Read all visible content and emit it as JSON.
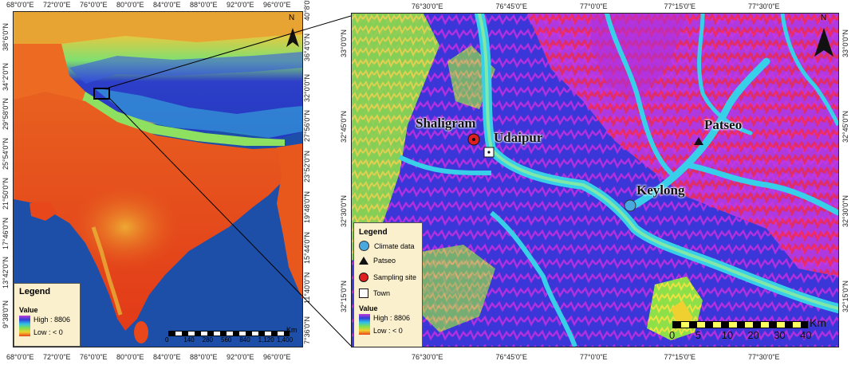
{
  "left_map": {
    "top_ticks": [
      "68°0'0\"E",
      "72°0'0\"E",
      "76°0'0\"E",
      "80°0'0\"E",
      "84°0'0\"E",
      "88°0'0\"E",
      "92°0'0\"E",
      "96°0'0\"E"
    ],
    "bottom_ticks": [
      "68°0'0\"E",
      "72°0'0\"E",
      "76°0'0\"E",
      "80°0'0\"E",
      "84°0'0\"E",
      "88°0'0\"E",
      "92°0'0\"E",
      "96°0'0\"E"
    ],
    "left_ticks": [
      "38°6'0\"N",
      "34°2'0\"N",
      "29°58'0\"N",
      "25°54'0\"N",
      "21°50'0\"N",
      "17°46'0\"N",
      "13°42'0\"N",
      "9°38'0\"N"
    ],
    "right_ticks": [
      "40°8'0\"N",
      "36°4'0\"N",
      "32°0'0\"N",
      "27°56'0\"N",
      "23°52'0\"N",
      "19°48'0\"N",
      "15°44'0\"N",
      "11°40'0\"N",
      "7°36'0\"N"
    ],
    "north": "N",
    "legend": {
      "title": "Legend",
      "value_label": "Value",
      "high": "High : 8806",
      "low": "Low : < 0"
    },
    "scalebar": {
      "labels": [
        "0",
        "140",
        "280",
        "560",
        "840",
        "1,120",
        "1,400"
      ],
      "unit": "Km"
    }
  },
  "right_map": {
    "top_ticks": [
      "76°30'0\"E",
      "76°45'0\"E",
      "77°0'0\"E",
      "77°15'0\"E",
      "77°30'0\"E"
    ],
    "bottom_ticks": [
      "76°30'0\"E",
      "76°45'0\"E",
      "77°0'0\"E",
      "77°15'0\"E",
      "77°30'0\"E"
    ],
    "left_ticks": [
      "33°0'0\"N",
      "32°45'0\"N",
      "32°30'0\"N",
      "32°15'0\"N"
    ],
    "right_ticks": [
      "33°0'0\"N",
      "32°45'0\"N",
      "32°30'0\"N",
      "32°15'0\"N"
    ],
    "north": "N",
    "places": {
      "shaligram": "Shaligram",
      "udaipur": "Udaipur",
      "patseo": "Patseo",
      "keylong": "Keylong"
    },
    "legend": {
      "title": "Legend",
      "items": [
        "Climate data",
        "Patseo",
        "Sampling site",
        "Town"
      ],
      "value_label": "Value",
      "high": "High : 8806",
      "low": "Low : < 0"
    },
    "scalebar": {
      "labels": [
        "0",
        "5",
        "10",
        "20",
        "30",
        "40"
      ],
      "unit": "Km"
    }
  },
  "colors": {
    "ocean": "#1e4fa8",
    "plains": "#e8471c",
    "high": "#2a2fd0",
    "mid": "#d030e0",
    "ridge": "#ff2a40",
    "valley": "#3ad0e8",
    "green": "#7ee040",
    "legend_bg": "#fbf0cd",
    "climate_marker": "#4aa8e0",
    "sampling_marker": "#e02020"
  }
}
